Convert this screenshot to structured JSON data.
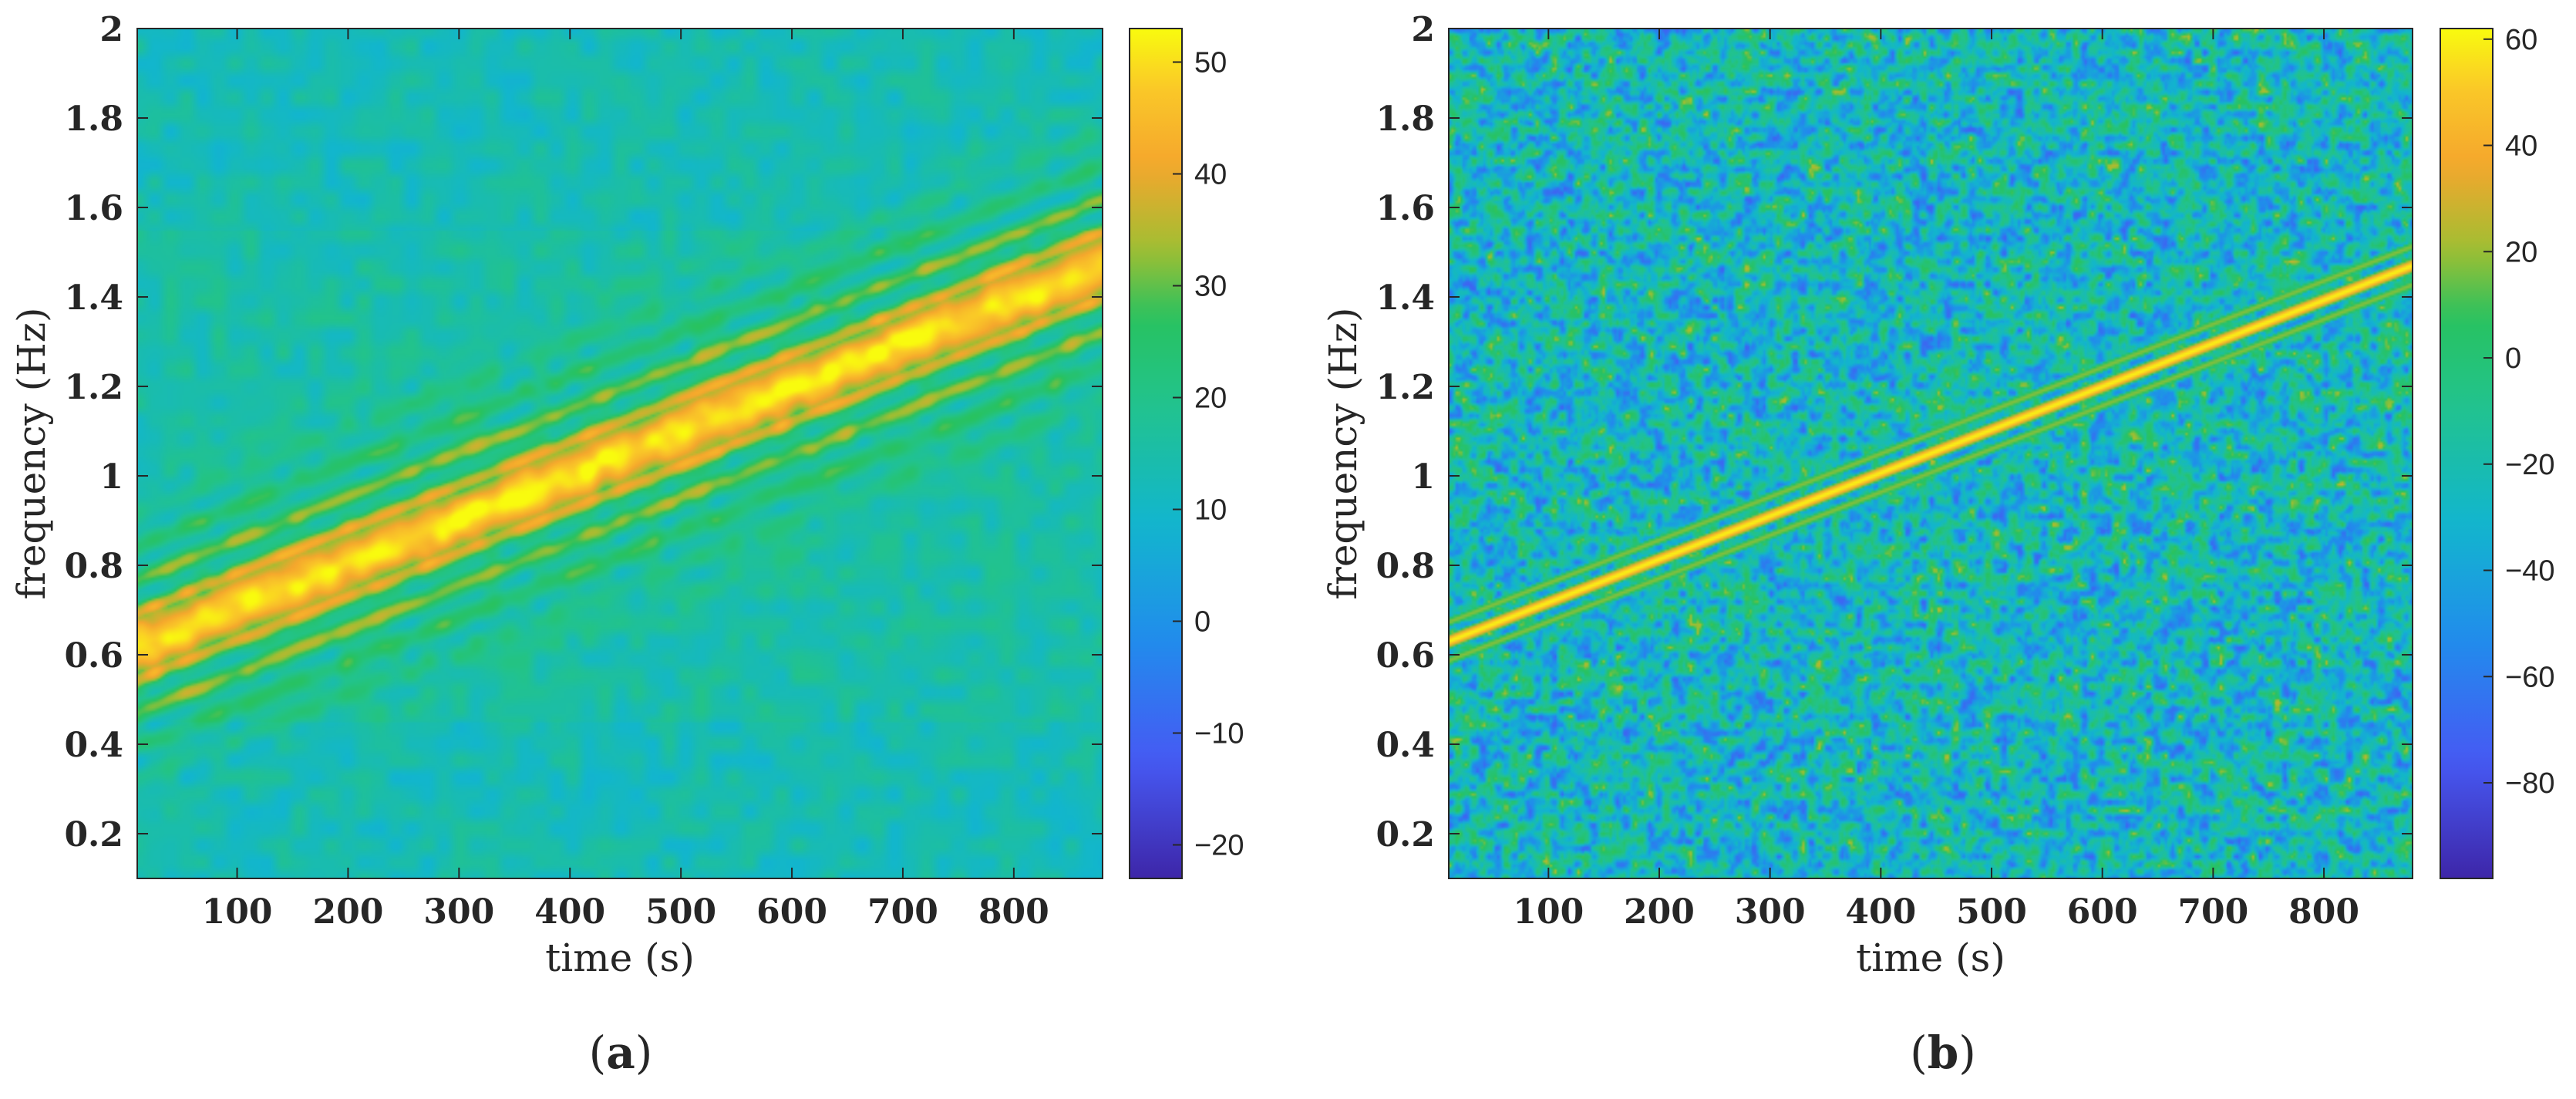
{
  "figure": {
    "accent_colors": {
      "low": "#3e26a8",
      "mid_blue": "#1c88e8",
      "mid_green": "#12b8a0",
      "green": "#19c266",
      "high_orange": "#f5a62d",
      "high": "#f9fb0e"
    }
  },
  "chart_data": [
    {
      "type": "heatmap",
      "panel_label": "(a)",
      "xlabel": "time (s)",
      "ylabel": "frequency (Hz)",
      "xlim": [
        10,
        880
      ],
      "ylim": [
        0.1,
        2.0
      ],
      "x_ticks": [
        "100",
        "200",
        "300",
        "400",
        "500",
        "600",
        "700",
        "800"
      ],
      "x_tick_values": [
        100,
        200,
        300,
        400,
        500,
        600,
        700,
        800
      ],
      "y_ticks": [
        "0.2",
        "0.4",
        "0.6",
        "0.8",
        "1",
        "1.2",
        "1.4",
        "1.6",
        "1.8",
        "2"
      ],
      "y_tick_values": [
        0.2,
        0.4,
        0.6,
        0.8,
        1.0,
        1.2,
        1.4,
        1.6,
        1.8,
        2.0
      ],
      "colorbar": {
        "range": [
          -23,
          53
        ],
        "ticks": [
          "−20",
          "−10",
          "0",
          "10",
          "20",
          "30",
          "40",
          "50"
        ],
        "tick_values": [
          -20,
          -10,
          0,
          10,
          20,
          30,
          40,
          50
        ]
      },
      "ridge": {
        "description": "linear chirp ridge",
        "start": {
          "time_s": 10,
          "freq_hz": 0.62
        },
        "end": {
          "time_s": 880,
          "freq_hz": 1.47
        },
        "peak_value": 52,
        "background_value": 15,
        "background_texture": "smooth"
      }
    },
    {
      "type": "heatmap",
      "panel_label": "(b)",
      "xlabel": "time (s)",
      "ylabel": "frequency (Hz)",
      "xlim": [
        10,
        880
      ],
      "ylim": [
        0.1,
        2.0
      ],
      "x_ticks": [
        "100",
        "200",
        "300",
        "400",
        "500",
        "600",
        "700",
        "800"
      ],
      "x_tick_values": [
        100,
        200,
        300,
        400,
        500,
        600,
        700,
        800
      ],
      "y_ticks": [
        "0.2",
        "0.4",
        "0.6",
        "0.8",
        "1",
        "1.2",
        "1.4",
        "1.6",
        "1.8",
        "2"
      ],
      "y_tick_values": [
        0.2,
        0.4,
        0.6,
        0.8,
        1.0,
        1.2,
        1.4,
        1.6,
        1.8,
        2.0
      ],
      "colorbar": {
        "range": [
          -98,
          62
        ],
        "ticks": [
          "−80",
          "−60",
          "−40",
          "−20",
          "0",
          "20",
          "40",
          "60"
        ],
        "tick_values": [
          -80,
          -60,
          -40,
          -20,
          0,
          20,
          40,
          60
        ]
      },
      "ridge": {
        "description": "linear chirp ridge",
        "start": {
          "time_s": 10,
          "freq_hz": 0.63
        },
        "end": {
          "time_s": 880,
          "freq_hz": 1.47
        },
        "peak_value": 60,
        "background_value": -30,
        "background_texture": "noisy"
      }
    }
  ]
}
